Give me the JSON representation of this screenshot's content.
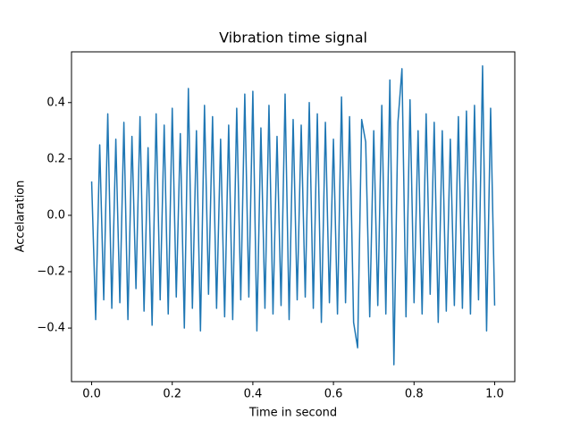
{
  "chart_data": {
    "type": "line",
    "title": "Vibration time signal",
    "xlabel": "Time in second",
    "ylabel": "Accelaration",
    "x": [
      0.0,
      0.01,
      0.02,
      0.03,
      0.04,
      0.05,
      0.06,
      0.07,
      0.08,
      0.09,
      0.1,
      0.11,
      0.12,
      0.13,
      0.14,
      0.15,
      0.16,
      0.17,
      0.18,
      0.19,
      0.2,
      0.21,
      0.22,
      0.23,
      0.24,
      0.25,
      0.26,
      0.27,
      0.28,
      0.29,
      0.3,
      0.31,
      0.32,
      0.33,
      0.34,
      0.35,
      0.36,
      0.37,
      0.38,
      0.39,
      0.4,
      0.41,
      0.42,
      0.43,
      0.44,
      0.45,
      0.46,
      0.47,
      0.48,
      0.49,
      0.5,
      0.51,
      0.52,
      0.53,
      0.54,
      0.55,
      0.56,
      0.57,
      0.58,
      0.59,
      0.6,
      0.61,
      0.62,
      0.63,
      0.64,
      0.65,
      0.66,
      0.67,
      0.68,
      0.69,
      0.7,
      0.71,
      0.72,
      0.73,
      0.74,
      0.75,
      0.76,
      0.77,
      0.78,
      0.79,
      0.8,
      0.81,
      0.82,
      0.83,
      0.84,
      0.85,
      0.86,
      0.87,
      0.88,
      0.89,
      0.9,
      0.91,
      0.92,
      0.93,
      0.94,
      0.95,
      0.96,
      0.97,
      0.98,
      0.99,
      1.0
    ],
    "series": [
      {
        "color": "#1f77b4",
        "values": [
          0.12,
          -0.37,
          0.25,
          -0.3,
          0.36,
          -0.33,
          0.27,
          -0.31,
          0.33,
          -0.37,
          0.28,
          -0.26,
          0.35,
          -0.34,
          0.24,
          -0.39,
          0.36,
          -0.3,
          0.32,
          -0.35,
          0.38,
          -0.29,
          0.29,
          -0.4,
          0.45,
          -0.33,
          0.3,
          -0.41,
          0.39,
          -0.28,
          0.35,
          -0.33,
          0.27,
          -0.36,
          0.32,
          -0.37,
          0.38,
          -0.3,
          0.43,
          -0.29,
          0.44,
          -0.41,
          0.31,
          -0.33,
          0.39,
          -0.35,
          0.28,
          -0.32,
          0.43,
          -0.37,
          0.34,
          -0.3,
          0.32,
          -0.29,
          0.4,
          -0.33,
          0.36,
          -0.38,
          0.33,
          -0.31,
          0.27,
          -0.35,
          0.42,
          -0.31,
          0.35,
          -0.38,
          -0.47,
          0.34,
          0.26,
          -0.36,
          0.3,
          -0.32,
          0.39,
          -0.35,
          0.48,
          -0.53,
          0.33,
          0.52,
          -0.36,
          0.41,
          -0.31,
          0.3,
          -0.35,
          0.36,
          -0.28,
          0.33,
          -0.38,
          0.3,
          -0.34,
          0.27,
          -0.32,
          0.35,
          -0.33,
          0.37,
          -0.35,
          0.39,
          -0.3,
          0.53,
          -0.41,
          0.38,
          -0.32
        ]
      }
    ],
    "xlim": [
      -0.05,
      1.05
    ],
    "ylim": [
      -0.59,
      0.58
    ],
    "xticks": [
      {
        "value": 0,
        "label": "0.0"
      },
      0.2,
      0.4,
      0.6,
      0.8,
      {
        "value": 1,
        "label": "1.0"
      }
    ],
    "yticks": [
      {
        "value": -0.4,
        "label": "−0.4"
      },
      {
        "value": -0.2,
        "label": "−0.2"
      },
      {
        "value": 0,
        "label": "0.0"
      },
      0.2,
      0.4
    ],
    "grid": false
  }
}
